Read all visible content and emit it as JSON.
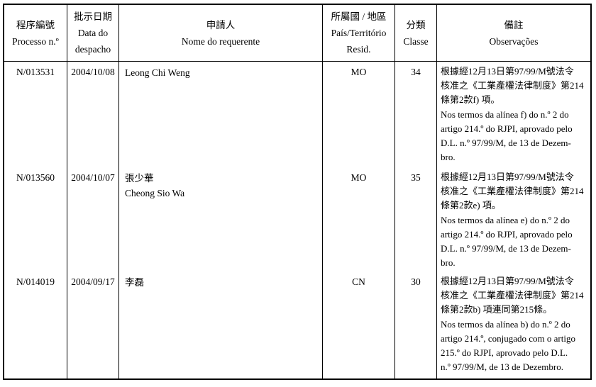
{
  "colors": {
    "ink": "#000000",
    "paper": "#ffffff"
  },
  "header": {
    "process": {
      "zh": "程序編號",
      "pt": "Processo n.º"
    },
    "date": {
      "zh": "批示日期",
      "pt1": "Data do",
      "pt2": "despacho"
    },
    "applicant": {
      "zh": "申請人",
      "pt": "Nome do requerente"
    },
    "country": {
      "zh": "所屬國 / 地區",
      "pt1": "País/Território",
      "pt2": "Resid."
    },
    "class": {
      "zh": "分類",
      "pt": "Classe"
    },
    "obs": {
      "zh": "備註",
      "pt": "Observações"
    }
  },
  "rows": [
    {
      "process": "N/013531",
      "date": "2004/10/08",
      "applicant_lines": [
        "Leong Chi Weng"
      ],
      "country": "MO",
      "class": "34",
      "obs_lines": [
        "根據經12月13日第97/99/M號法令",
        "核准之《工業產權法律制度》第214",
        "條第2款f) 項。",
        "Nos termos da alínea f) do n.º 2 do",
        "artigo 214.º do RJPI, aprovado pelo",
        "D.L. n.º 97/99/M, de 13 de Dezem-",
        "bro."
      ]
    },
    {
      "process": "N/013560",
      "date": "2004/10/07",
      "applicant_lines": [
        "張少華",
        "Cheong Sio Wa"
      ],
      "country": "MO",
      "class": "35",
      "obs_lines": [
        "根據經12月13日第97/99/M號法令",
        "核准之《工業產權法律制度》第214",
        "條第2款e) 項。",
        "Nos termos da alínea e) do n.º 2 do",
        "artigo 214.º do RJPI, aprovado pelo",
        "D.L. n.º 97/99/M, de 13 de Dezem-",
        "bro."
      ]
    },
    {
      "process": "N/014019",
      "date": "2004/09/17",
      "applicant_lines": [
        "李磊"
      ],
      "country": "CN",
      "class": "30",
      "obs_lines": [
        "根據經12月13日第97/99/M號法令",
        "核准之《工業產權法律制度》第214",
        "條第2款b) 項連同第215條。",
        "Nos termos da alínea b) do n.º 2 do",
        "artigo 214.º, conjugado com o artigo",
        "215.º do RJPI, aprovado pelo D.L.",
        "n.º 97/99/M, de 13 de Dezembro."
      ]
    }
  ]
}
